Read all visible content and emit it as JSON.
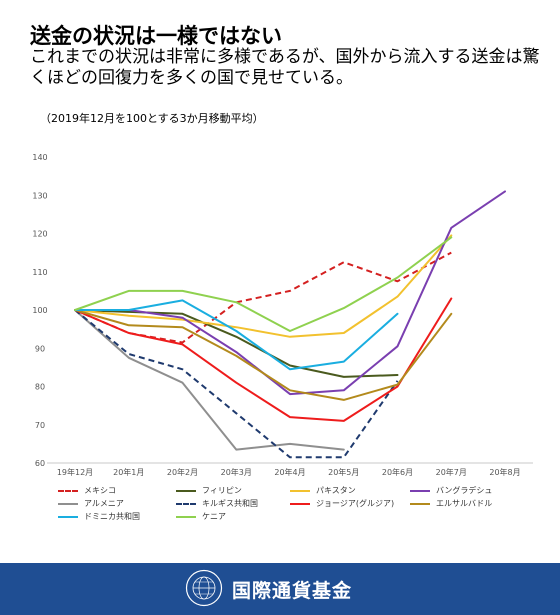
{
  "header": {
    "title": "送金の状況は一様ではない",
    "subtitle": "これまでの状況は非常に多様であるが、国外から流入する送金は驚くほどの回復力を多くの国で見せている。",
    "note": "（2019年12月を100とする3か月移動平均）"
  },
  "chart_data": {
    "type": "line",
    "x": [
      "19年12月",
      "20年1月",
      "20年2月",
      "20年3月",
      "20年4月",
      "20年5月",
      "20年6月",
      "20年7月",
      "20年8月"
    ],
    "ylim": [
      60,
      140
    ],
    "yticks": [
      "60",
      "70",
      "80",
      "90",
      "100",
      "110",
      "120",
      "130",
      "140"
    ],
    "grid": false,
    "legend_position": "bottom",
    "series": [
      {
        "name": "メキシコ",
        "color": "#d42020",
        "dash": true,
        "values": [
          100,
          94,
          91.5,
          102,
          105,
          112.5,
          107.5,
          115,
          null
        ]
      },
      {
        "name": "フィリピン",
        "color": "#4a5a1e",
        "dash": false,
        "values": [
          100,
          99.5,
          99,
          93,
          85.5,
          82.5,
          83,
          null,
          null
        ]
      },
      {
        "name": "パキスタン",
        "color": "#f2c12e",
        "dash": false,
        "values": [
          100,
          98.5,
          97.5,
          95.5,
          93,
          94,
          103.5,
          119.5,
          null
        ]
      },
      {
        "name": "バングラデシュ",
        "color": "#7a3fb0",
        "dash": false,
        "values": [
          100,
          100,
          98,
          89,
          78,
          79,
          90.5,
          121.5,
          131
        ]
      },
      {
        "name": "アルメニア",
        "color": "#8f8f8f",
        "dash": false,
        "values": [
          100,
          87.5,
          81,
          63.5,
          65,
          63.5,
          null,
          null,
          null
        ]
      },
      {
        "name": "キルギス共和国",
        "color": "#1f3a6e",
        "dash": true,
        "values": [
          100,
          88.5,
          84.5,
          73,
          61.5,
          61.5,
          81.5,
          null,
          null
        ]
      },
      {
        "name": "ジョージア(グルジア)",
        "color": "#ee1c1c",
        "dash": false,
        "values": [
          100,
          94,
          91,
          81,
          72,
          71,
          80,
          103,
          null
        ]
      },
      {
        "name": "エルサルバドル",
        "color": "#b38a1c",
        "dash": false,
        "values": [
          100,
          96,
          95.5,
          88,
          79,
          76.5,
          80.5,
          99,
          null
        ]
      },
      {
        "name": "ドミニカ共和国",
        "color": "#1aaee0",
        "dash": false,
        "values": [
          100,
          100,
          102.5,
          94.5,
          84.5,
          86.5,
          99,
          null,
          null
        ]
      },
      {
        "name": "ケニア",
        "color": "#8fd14f",
        "dash": false,
        "values": [
          100,
          105,
          105,
          102,
          94.5,
          100.5,
          108.5,
          119,
          null
        ]
      }
    ]
  },
  "footer": {
    "org_name": "国際通貨基金",
    "seal_text": "INTERNATIONAL MONETARY FUND",
    "footer_color": "#1f4e93"
  }
}
